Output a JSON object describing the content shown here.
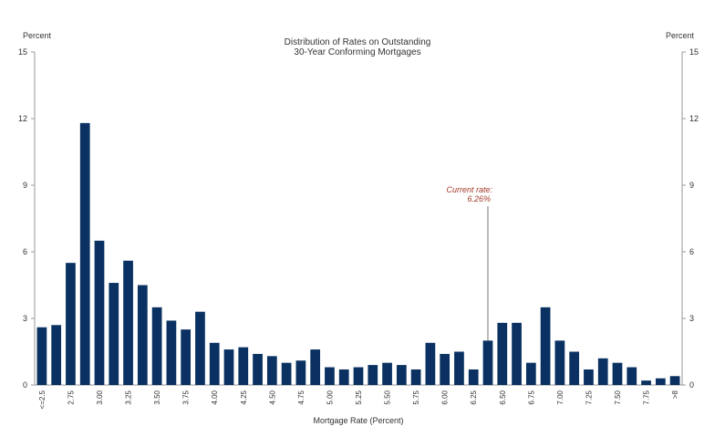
{
  "chart_data": {
    "type": "bar",
    "title_lines": [
      "Distribution of Rates on Outstanding",
      "30-Year Conforming  Mortgages"
    ],
    "xlabel": "Mortgage Rate (Percent)",
    "ylabel_left": "Percent",
    "ylabel_right": "Percent",
    "ylim": [
      0,
      15
    ],
    "yticks": [
      0,
      3,
      6,
      9,
      12,
      15
    ],
    "grid": false,
    "bar_color": "#0a3161",
    "annotation": {
      "line1": "Current  rate:",
      "line2": "6.26%",
      "color": "#a33a2a",
      "category_index": 31
    },
    "categories": [
      "<=2.5",
      "2.625",
      "2.75",
      "2.875",
      "3.00",
      "3.125",
      "3.25",
      "3.375",
      "3.50",
      "3.625",
      "3.75",
      "3.875",
      "4.00",
      "4.125",
      "4.25",
      "4.375",
      "4.50",
      "4.625",
      "4.75",
      "4.875",
      "5.00",
      "5.125",
      "5.25",
      "5.375",
      "5.50",
      "5.625",
      "5.75",
      "5.875",
      "6.00",
      "6.125",
      "6.25",
      "6.375",
      "6.50",
      "6.625",
      "6.75",
      "6.875",
      "7.00",
      "7.125",
      "7.25",
      "7.375",
      "7.50",
      "7.625",
      "7.75",
      "7.875",
      ">8"
    ],
    "tick_labels": [
      "<=2.5",
      "",
      "2.75",
      "",
      "3.00",
      "",
      "3.25",
      "",
      "3.50",
      "",
      "3.75",
      "",
      "4.00",
      "",
      "4.25",
      "",
      "4.50",
      "",
      "4.75",
      "",
      "5.00",
      "",
      "5.25",
      "",
      "5.50",
      "",
      "5.75",
      "",
      "6.00",
      "",
      "6.25",
      "",
      "6.50",
      "",
      "6.75",
      "",
      "7.00",
      "",
      "7.25",
      "",
      "7.50",
      "",
      "7.75",
      "",
      ">8"
    ],
    "values": [
      2.6,
      2.7,
      5.5,
      11.8,
      6.5,
      4.6,
      5.6,
      4.5,
      3.5,
      2.9,
      2.5,
      3.3,
      1.9,
      1.6,
      1.7,
      1.4,
      1.3,
      1.0,
      1.1,
      1.6,
      0.8,
      0.7,
      0.8,
      0.9,
      1.0,
      0.9,
      0.7,
      1.9,
      1.4,
      1.5,
      0.7,
      2.0,
      2.8,
      2.8,
      1.0,
      3.5,
      2.0,
      1.5,
      0.7,
      1.2,
      1.0,
      0.8,
      0.2,
      0.3,
      0.4
    ]
  }
}
